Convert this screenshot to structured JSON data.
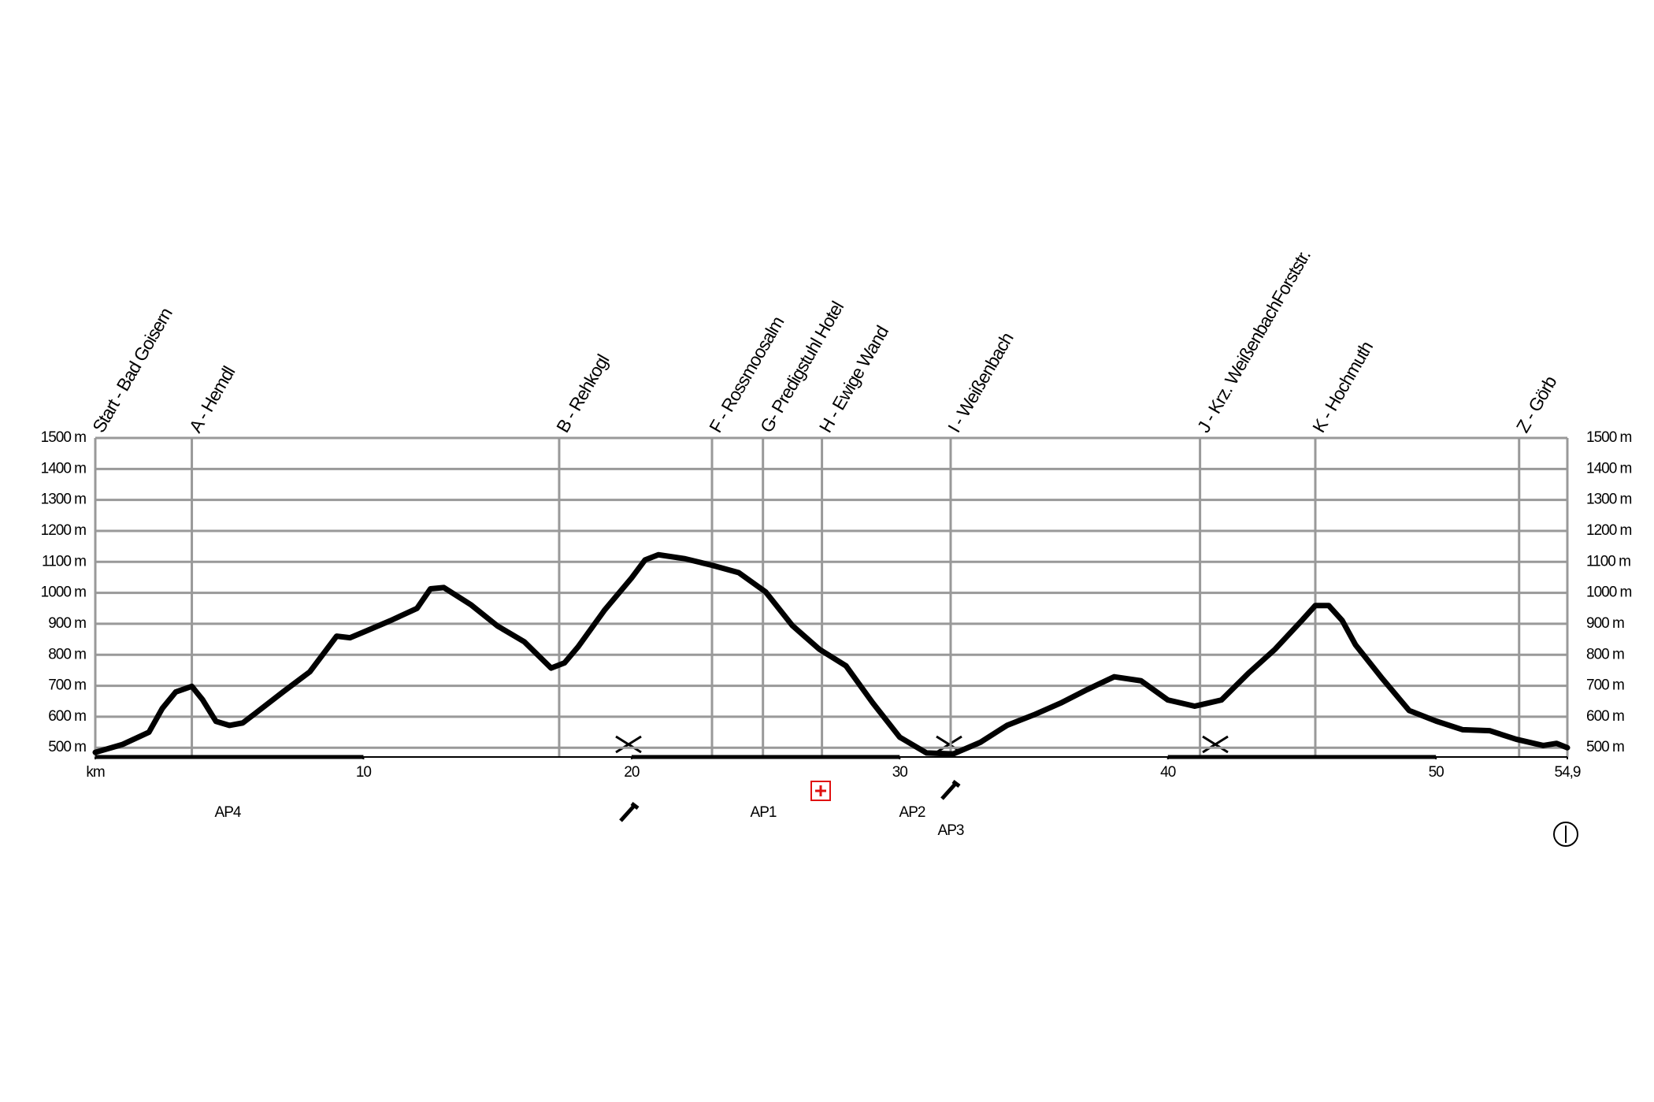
{
  "chart_data": {
    "type": "line",
    "x": [
      0,
      1,
      2,
      2.5,
      3,
      3.6,
      4,
      4.5,
      5,
      5.5,
      6,
      7,
      8,
      9,
      9.5,
      10,
      11,
      12,
      12.5,
      13,
      14,
      15,
      16,
      17,
      17.5,
      18,
      19,
      20,
      20.5,
      21,
      22,
      23,
      24,
      25,
      26,
      27,
      28,
      29,
      30,
      31,
      32,
      33,
      34,
      35,
      36,
      37,
      38,
      39,
      40,
      41,
      42,
      43,
      44,
      45,
      45.5,
      46,
      46.5,
      47,
      48,
      49,
      50,
      51,
      52,
      53,
      54,
      54.5,
      54.9
    ],
    "series": [
      {
        "color": "#000000",
        "values": [
          485,
          510,
          550,
          627,
          680,
          698,
          655,
          585,
          572,
          580,
          613,
          680,
          745,
          860,
          855,
          873,
          910,
          950,
          1013,
          1017,
          962,
          893,
          842,
          757,
          774,
          825,
          945,
          1048,
          1106,
          1123,
          1110,
          1089,
          1065,
          1003,
          894,
          818,
          764,
          644,
          534,
          483,
          480,
          517,
          572,
          606,
          644,
          688,
          729,
          716,
          654,
          634,
          654,
          740,
          818,
          911,
          959,
          959,
          911,
          832,
          723,
          620,
          586,
          558,
          555,
          527,
          507,
          514,
          500
        ]
      }
    ],
    "xlim": [
      0,
      54.9
    ],
    "xticks": [
      {
        "value": 0,
        "label": "km"
      },
      10,
      20,
      30,
      40,
      50,
      {
        "value": 54.9,
        "label": "54,9"
      }
    ],
    "ylim": [
      470,
      1500
    ],
    "yticks": [
      {
        "value": 500,
        "label": "500 m"
      },
      {
        "value": 600,
        "label": "600 m"
      },
      {
        "value": 700,
        "label": "700 m"
      },
      {
        "value": 800,
        "label": "800 m"
      },
      {
        "value": 900,
        "label": "900 m"
      },
      {
        "value": 1000,
        "label": "1000 m"
      },
      {
        "value": 1100,
        "label": "1100 m"
      },
      {
        "value": 1200,
        "label": "1200 m"
      },
      {
        "value": 1300,
        "label": "1300 m"
      },
      {
        "value": 1400,
        "label": "1400 m"
      },
      {
        "value": 1500,
        "label": "1500 m"
      }
    ],
    "grid": true,
    "waypoints": [
      {
        "label": "Start - Bad Goisern",
        "km": 0
      },
      {
        "label": "A - Hemdl",
        "km": 3.6
      },
      {
        "label": "B - Rehkogl",
        "km": 17.3
      },
      {
        "label": "F - Rossmoosalm",
        "km": 23.0
      },
      {
        "label": "G- Predigstuhl Hotel",
        "km": 24.9
      },
      {
        "label": "H - Ewige Wand",
        "km": 27.1
      },
      {
        "label": "I - Weißenbach",
        "km": 31.9
      },
      {
        "label": "J - Krz. WeißenbachForststr.",
        "km": 41.2
      },
      {
        "label": "K - Hochmuth",
        "km": 45.5
      },
      {
        "label": "Z - Görb",
        "km": 53.1
      }
    ],
    "annotations": [
      "AP4",
      "AP1",
      "AP2",
      "AP3"
    ]
  }
}
